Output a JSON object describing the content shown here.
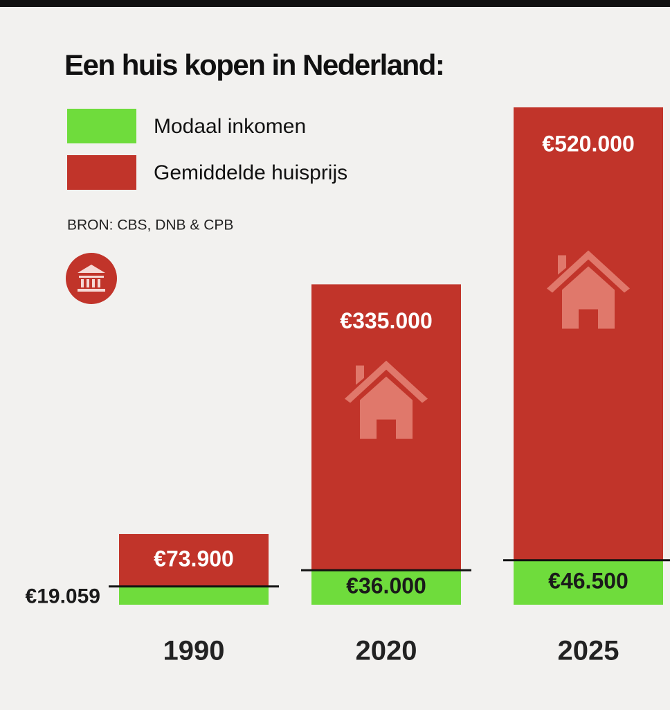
{
  "chart_data": {
    "type": "bar",
    "title": "Een huis kopen in Nederland:",
    "source": "BRON: CBS, DNB & CPB",
    "categories": [
      "1990",
      "2020",
      "2025"
    ],
    "series": [
      {
        "name": "Modaal inkomen",
        "color": "#6fdc3c",
        "values": [
          19059,
          36000,
          46500
        ],
        "value_labels": [
          "€19.059",
          "€36.000",
          "€46.500"
        ]
      },
      {
        "name": "Gemiddelde huisprijs",
        "color": "#c1342a",
        "values": [
          73900,
          335000,
          520000
        ],
        "value_labels": [
          "€73.900",
          "€335.000",
          "€520.000"
        ]
      }
    ],
    "ylim": [
      0,
      520000
    ]
  }
}
